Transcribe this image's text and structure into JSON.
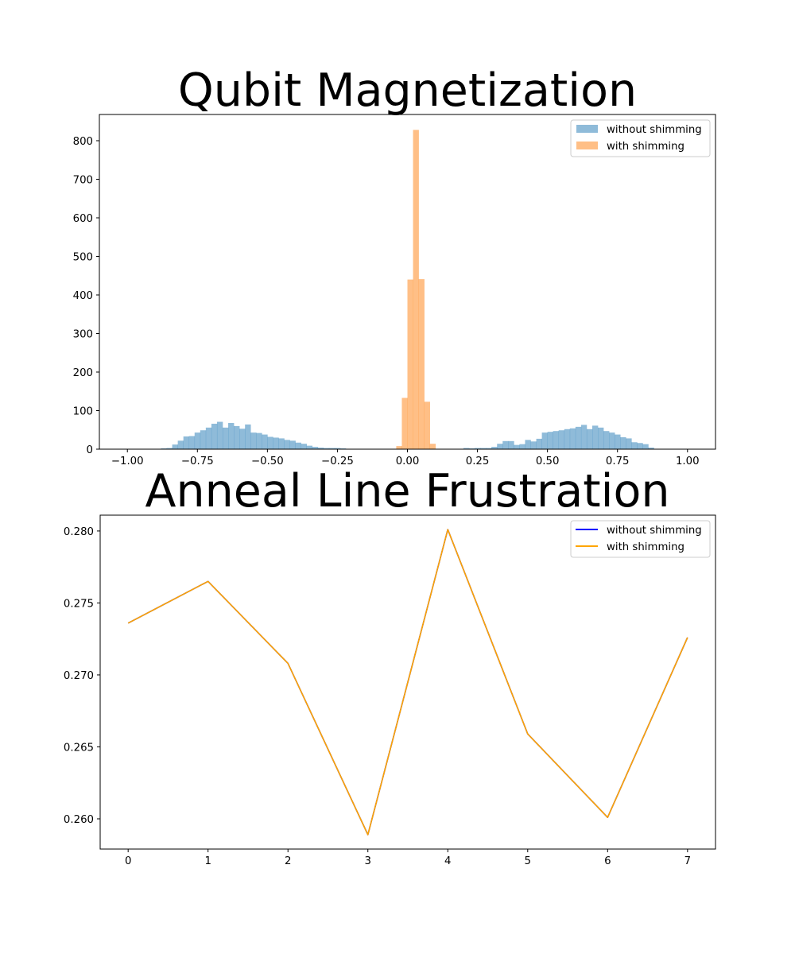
{
  "chart_data": [
    {
      "type": "bar",
      "title": "Qubit Magnetization",
      "xlabel": "",
      "ylabel": "",
      "xlim": [
        -1.1,
        1.1
      ],
      "ylim": [
        0,
        868
      ],
      "xticks": [
        -1.0,
        -0.75,
        -0.5,
        -0.25,
        0.0,
        0.25,
        0.5,
        0.75,
        1.0
      ],
      "xtick_labels": [
        "−1.00",
        "−0.75",
        "−0.50",
        "−0.25",
        "0.00",
        "0.25",
        "0.50",
        "0.75",
        "1.00"
      ],
      "yticks": [
        0,
        100,
        200,
        300,
        400,
        500,
        600,
        700,
        800
      ],
      "ytick_labels": [
        "0",
        "100",
        "200",
        "300",
        "400",
        "500",
        "600",
        "700",
        "800"
      ],
      "legend_position": "top-right",
      "grid": false,
      "series": [
        {
          "name": "without shimming",
          "color": "#1f77b4",
          "opacity": 0.5,
          "bin_range": [
            -1.0,
            1.0
          ],
          "bin_width": 0.02,
          "counts": [
            0,
            0,
            0,
            0,
            0,
            1,
            2,
            3,
            12,
            22,
            33,
            34,
            43,
            49,
            56,
            66,
            71,
            56,
            68,
            60,
            53,
            64,
            43,
            42,
            38,
            32,
            30,
            28,
            24,
            22,
            17,
            14,
            9,
            6,
            4,
            3,
            3,
            3,
            2,
            0,
            0,
            0,
            0,
            0,
            0,
            0,
            0,
            0,
            0,
            0,
            0,
            0,
            0,
            0,
            0,
            0,
            0,
            0,
            0,
            1,
            3,
            2,
            3,
            3,
            3,
            6,
            14,
            21,
            21,
            11,
            13,
            24,
            20,
            27,
            43,
            45,
            47,
            49,
            52,
            54,
            58,
            63,
            52,
            61,
            56,
            47,
            43,
            38,
            31,
            28,
            18,
            16,
            13,
            4,
            0,
            0,
            0,
            0,
            0,
            0
          ]
        },
        {
          "name": "with shimming",
          "color": "#ff7f0e",
          "opacity": 0.5,
          "bin_range": [
            -1.0,
            1.0
          ],
          "bin_width": 0.02,
          "counts": [
            0,
            0,
            0,
            0,
            0,
            0,
            0,
            0,
            0,
            0,
            0,
            0,
            0,
            0,
            0,
            0,
            0,
            0,
            0,
            0,
            0,
            0,
            0,
            0,
            0,
            0,
            0,
            0,
            0,
            0,
            0,
            0,
            0,
            0,
            0,
            0,
            0,
            0,
            0,
            0,
            0,
            0,
            0,
            0,
            0,
            0,
            0,
            0,
            8,
            133,
            440,
            828,
            441,
            123,
            14,
            0,
            0,
            0,
            0,
            0,
            0,
            0,
            0,
            0,
            0,
            0,
            0,
            0,
            0,
            0,
            0,
            0,
            0,
            0,
            0,
            0,
            0,
            0,
            0,
            0,
            0,
            0,
            0,
            0,
            0,
            0,
            0,
            0,
            0,
            0,
            0,
            0,
            0,
            0,
            0,
            0,
            0,
            0,
            0,
            0
          ]
        }
      ]
    },
    {
      "type": "line",
      "title": "Anneal Line Frustration",
      "xlabel": "",
      "ylabel": "",
      "xlim": [
        -0.35,
        7.35
      ],
      "ylim": [
        0.2579,
        0.2811
      ],
      "x": [
        0,
        1,
        2,
        3,
        4,
        5,
        6,
        7
      ],
      "xtick_labels": [
        "0",
        "1",
        "2",
        "3",
        "4",
        "5",
        "6",
        "7"
      ],
      "yticks": [
        0.26,
        0.265,
        0.27,
        0.275,
        0.28
      ],
      "ytick_labels": [
        "0.260",
        "0.265",
        "0.270",
        "0.275",
        "0.280"
      ],
      "legend_position": "top-right",
      "grid": false,
      "series": [
        {
          "name": "without shimming",
          "color": "#0000ff",
          "values": [
            0.2736,
            0.2765,
            0.2708,
            0.2589,
            0.2801,
            0.2659,
            0.2601,
            0.2726
          ]
        },
        {
          "name": "with shimming",
          "color": "#ffa500",
          "values": [
            0.2736,
            0.2765,
            0.2708,
            0.2589,
            0.2801,
            0.2659,
            0.2601,
            0.2726
          ]
        }
      ]
    }
  ]
}
